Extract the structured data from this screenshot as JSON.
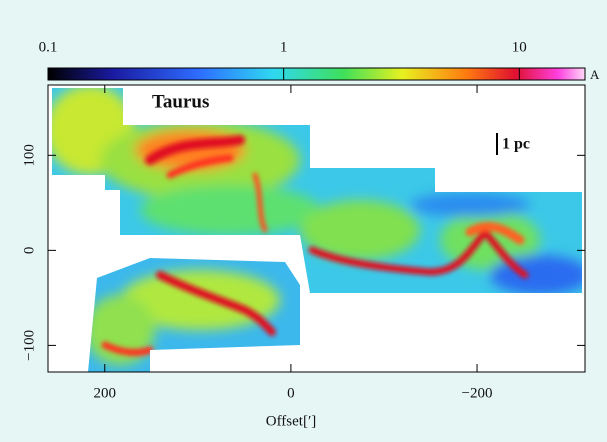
{
  "chart_data": {
    "type": "image-map",
    "annotations": {
      "region": "Taurus",
      "scale_bar": "1 pc"
    },
    "xlabel": "Offset[′]",
    "xlim": [
      261,
      -316
    ],
    "xticks": [
      200,
      0,
      {
        "value": -200,
        "label": "−200"
      }
    ],
    "ylim": [
      -128,
      174
    ],
    "yticks": [
      {
        "value": -100,
        "label": "−100"
      },
      0,
      100
    ],
    "colorbar": {
      "label": "A",
      "log": true,
      "lim": [
        0.1,
        19
      ],
      "ticks": [
        0.1,
        1,
        10
      ]
    }
  }
}
